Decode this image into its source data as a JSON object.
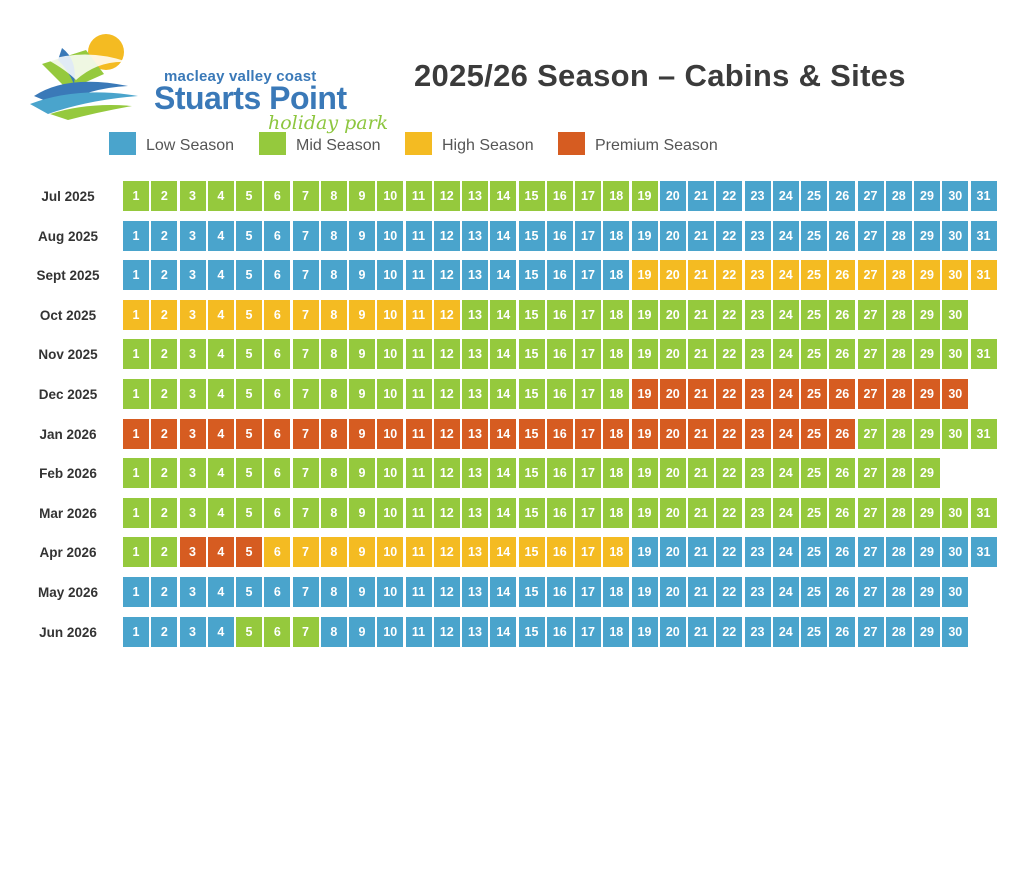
{
  "logo": {
    "line1": "macleay valley coast",
    "line2": "Stuarts Point",
    "line3": "holiday park"
  },
  "title": "2025/26 Season – Cabins & Sites",
  "colors": {
    "low": "#4aa4cc",
    "mid": "#95c93d",
    "high": "#f4bb22",
    "premium": "#d65c21"
  },
  "legend": [
    {
      "key": "low",
      "label": "Low Season"
    },
    {
      "key": "mid",
      "label": "Mid Season"
    },
    {
      "key": "high",
      "label": "High Season"
    },
    {
      "key": "premium",
      "label": "Premium Season"
    }
  ],
  "months": [
    {
      "label": "Jul 2025",
      "days": 31,
      "ranges": [
        [
          "mid",
          1,
          19
        ],
        [
          "low",
          20,
          31
        ]
      ]
    },
    {
      "label": "Aug 2025",
      "days": 31,
      "ranges": [
        [
          "low",
          1,
          31
        ]
      ]
    },
    {
      "label": "Sept 2025",
      "days": 31,
      "ranges": [
        [
          "low",
          1,
          18
        ],
        [
          "high",
          19,
          31
        ]
      ]
    },
    {
      "label": "Oct 2025",
      "days": 30,
      "ranges": [
        [
          "high",
          1,
          12
        ],
        [
          "mid",
          13,
          30
        ]
      ]
    },
    {
      "label": "Nov 2025",
      "days": 31,
      "ranges": [
        [
          "mid",
          1,
          31
        ]
      ]
    },
    {
      "label": "Dec 2025",
      "days": 30,
      "ranges": [
        [
          "mid",
          1,
          18
        ],
        [
          "premium",
          19,
          30
        ]
      ]
    },
    {
      "label": "Jan 2026",
      "days": 31,
      "ranges": [
        [
          "premium",
          1,
          26
        ],
        [
          "mid",
          27,
          31
        ]
      ]
    },
    {
      "label": "Feb 2026",
      "days": 29,
      "ranges": [
        [
          "mid",
          1,
          29
        ]
      ]
    },
    {
      "label": "Mar 2026",
      "days": 31,
      "ranges": [
        [
          "mid",
          1,
          31
        ]
      ]
    },
    {
      "label": "Apr 2026",
      "days": 31,
      "ranges": [
        [
          "mid",
          1,
          2
        ],
        [
          "premium",
          3,
          5
        ],
        [
          "high",
          6,
          18
        ],
        [
          "low",
          19,
          31
        ]
      ]
    },
    {
      "label": "May 2026",
      "days": 30,
      "ranges": [
        [
          "low",
          1,
          30
        ]
      ]
    },
    {
      "label": "Jun 2026",
      "days": 30,
      "ranges": [
        [
          "low",
          1,
          4
        ],
        [
          "mid",
          5,
          7
        ],
        [
          "low",
          8,
          30
        ]
      ]
    }
  ]
}
